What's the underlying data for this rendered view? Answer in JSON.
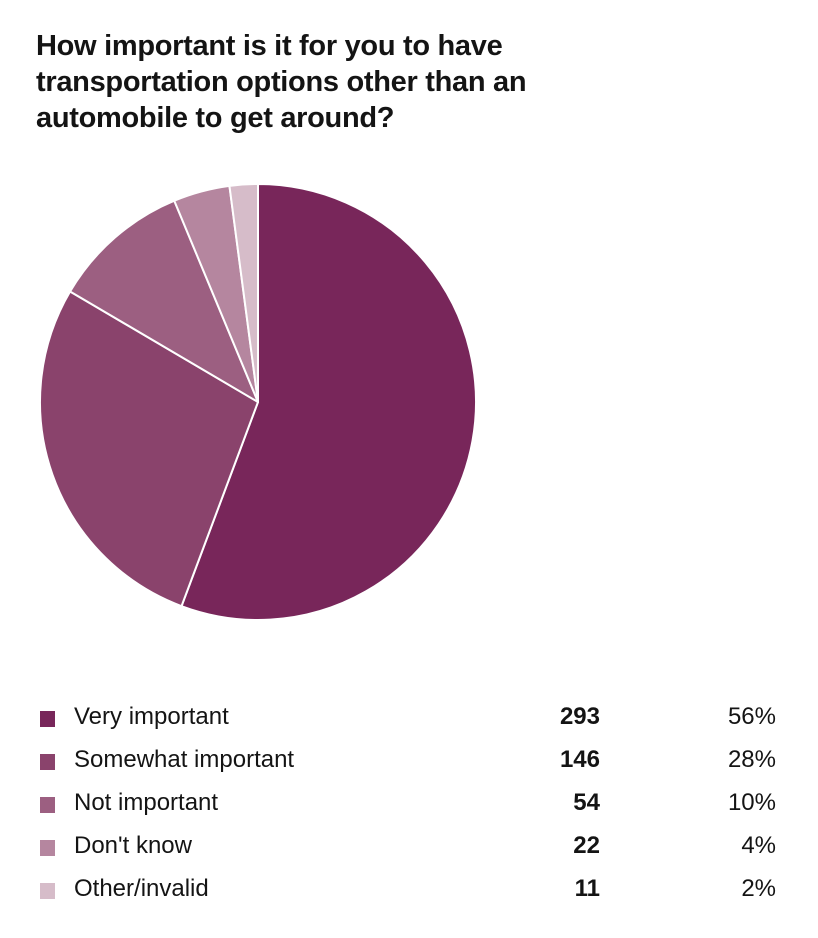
{
  "chart_data": {
    "type": "pie",
    "title": "How important is it for you to have transportation options other than an automobile to get around?",
    "start_angle": "12 o'clock",
    "direction": "clockwise",
    "slices": [
      {
        "label": "Very important",
        "count": 293,
        "percent_label": "56%",
        "value": 56,
        "color": "#78265a"
      },
      {
        "label": "Somewhat important",
        "count": 146,
        "percent_label": "28%",
        "value": 28,
        "color": "#8a436c"
      },
      {
        "label": "Not important",
        "count": 54,
        "percent_label": "10%",
        "value": 10,
        "color": "#9c5f81"
      },
      {
        "label": "Don't know",
        "count": 22,
        "percent_label": "4%",
        "value": 4,
        "color": "#b5869f"
      },
      {
        "label": "Other/invalid",
        "count": 11,
        "percent_label": "2%",
        "value": 2,
        "color": "#d6bcc9"
      }
    ],
    "legend_position": "bottom"
  }
}
